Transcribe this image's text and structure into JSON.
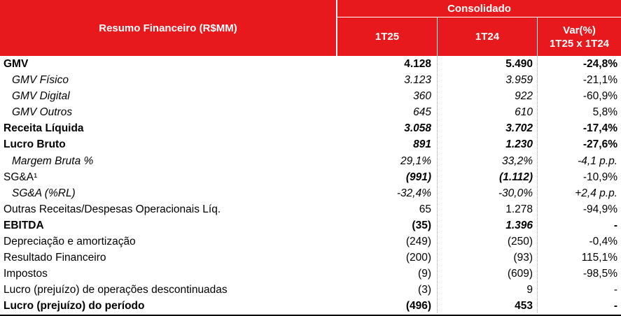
{
  "header": {
    "title": "Resumo Financeiro (R$MM)",
    "group": "Consolidado",
    "col1": "1T25",
    "col2": "1T24",
    "col3_line1": "Var(%)",
    "col3_line2": "1T25 x 1T24"
  },
  "rows": [
    {
      "label": "GMV",
      "v1": "4.128",
      "v2": "5.490",
      "v3": "-24,8%"
    },
    {
      "label": "GMV Físico",
      "v1": "3.123",
      "v2": "3.959",
      "v3": "-21,1%"
    },
    {
      "label": "GMV Digital",
      "v1": "360",
      "v2": "922",
      "v3": "-60,9%"
    },
    {
      "label": "GMV Outros",
      "v1": "645",
      "v2": "610",
      "v3": "5,8%"
    },
    {
      "label": "Receita Líquida",
      "v1": "3.058",
      "v2": "3.702",
      "v3": "-17,4%"
    },
    {
      "label": "Lucro Bruto",
      "v1": "891",
      "v2": "1.230",
      "v3": "-27,6%"
    },
    {
      "label": "Margem Bruta %",
      "v1": "29,1%",
      "v2": "33,2%",
      "v3": "-4,1 p.p."
    },
    {
      "label": "SG&A¹",
      "v1": "(991)",
      "v2": "(1.112)",
      "v3": "-10,9%"
    },
    {
      "label": "SG&A (%RL)",
      "v1": "-32,4%",
      "v2": "-30,0%",
      "v3": "+2,4 p.p."
    },
    {
      "label": "Outras Receitas/Despesas Operacionais Líq.",
      "v1": "65",
      "v2": "1.278",
      "v3": "-94,9%"
    },
    {
      "label": "EBITDA",
      "v1": "(35)",
      "v2": "1.396",
      "v3": "-"
    },
    {
      "label": "Depreciação e amortização",
      "v1": "(249)",
      "v2": "(250)",
      "v3": "-0,4%"
    },
    {
      "label": "Resultado Financeiro",
      "v1": "(200)",
      "v2": "(93)",
      "v3": "115,1%"
    },
    {
      "label": "Impostos",
      "v1": "(9)",
      "v2": "(609)",
      "v3": "-98,5%"
    },
    {
      "label": "Lucro (prejuízo) de operações descontinuadas",
      "v1": "(3)",
      "v2": "9",
      "v3": "-"
    },
    {
      "label": "Lucro (prejuízo) do período",
      "v1": "(496)",
      "v2": "453",
      "v3": "-"
    }
  ]
}
